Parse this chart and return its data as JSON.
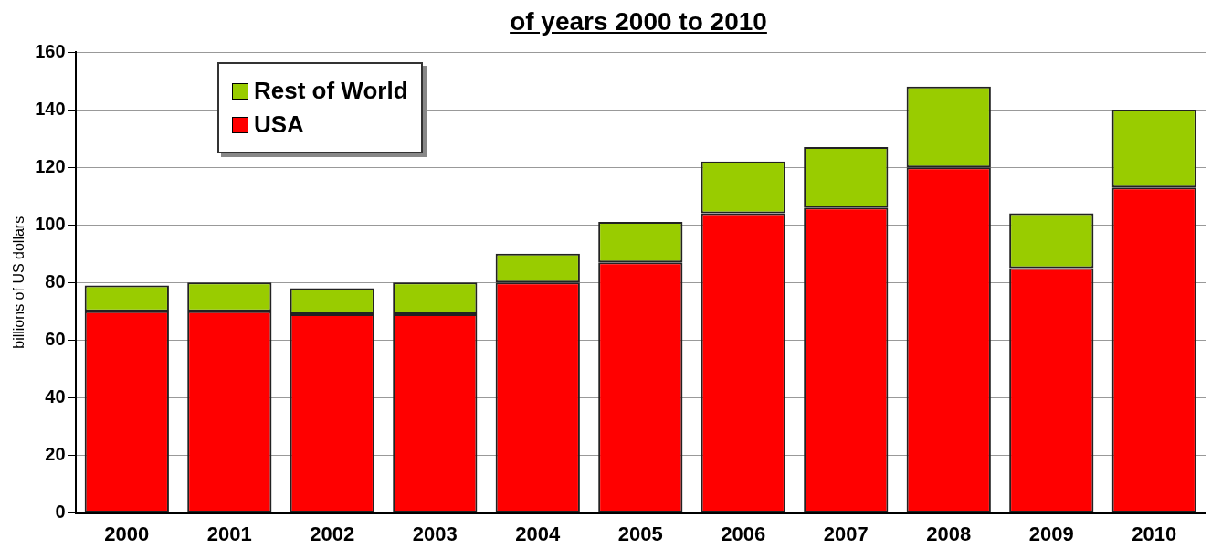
{
  "chart_data": {
    "type": "bar",
    "title": "of years 2000 to 2010",
    "ylabel": "billions of US dollars",
    "categories": [
      "2000",
      "2001",
      "2002",
      "2003",
      "2004",
      "2005",
      "2006",
      "2007",
      "2008",
      "2009",
      "2010"
    ],
    "stacked": true,
    "series": [
      {
        "name": "USA",
        "color": "#ff0000",
        "values": [
          70,
          70,
          69,
          69,
          80,
          87,
          104,
          106,
          120,
          85,
          113
        ]
      },
      {
        "name": "Rest of World",
        "color": "#99cc00",
        "values": [
          9,
          10,
          9,
          11,
          10,
          14,
          18,
          21,
          28,
          19,
          27
        ]
      }
    ],
    "ylim": [
      0,
      160
    ],
    "yticks": [
      0,
      20,
      40,
      60,
      80,
      100,
      120,
      140,
      160
    ],
    "grid": "y",
    "legend": "top left"
  }
}
